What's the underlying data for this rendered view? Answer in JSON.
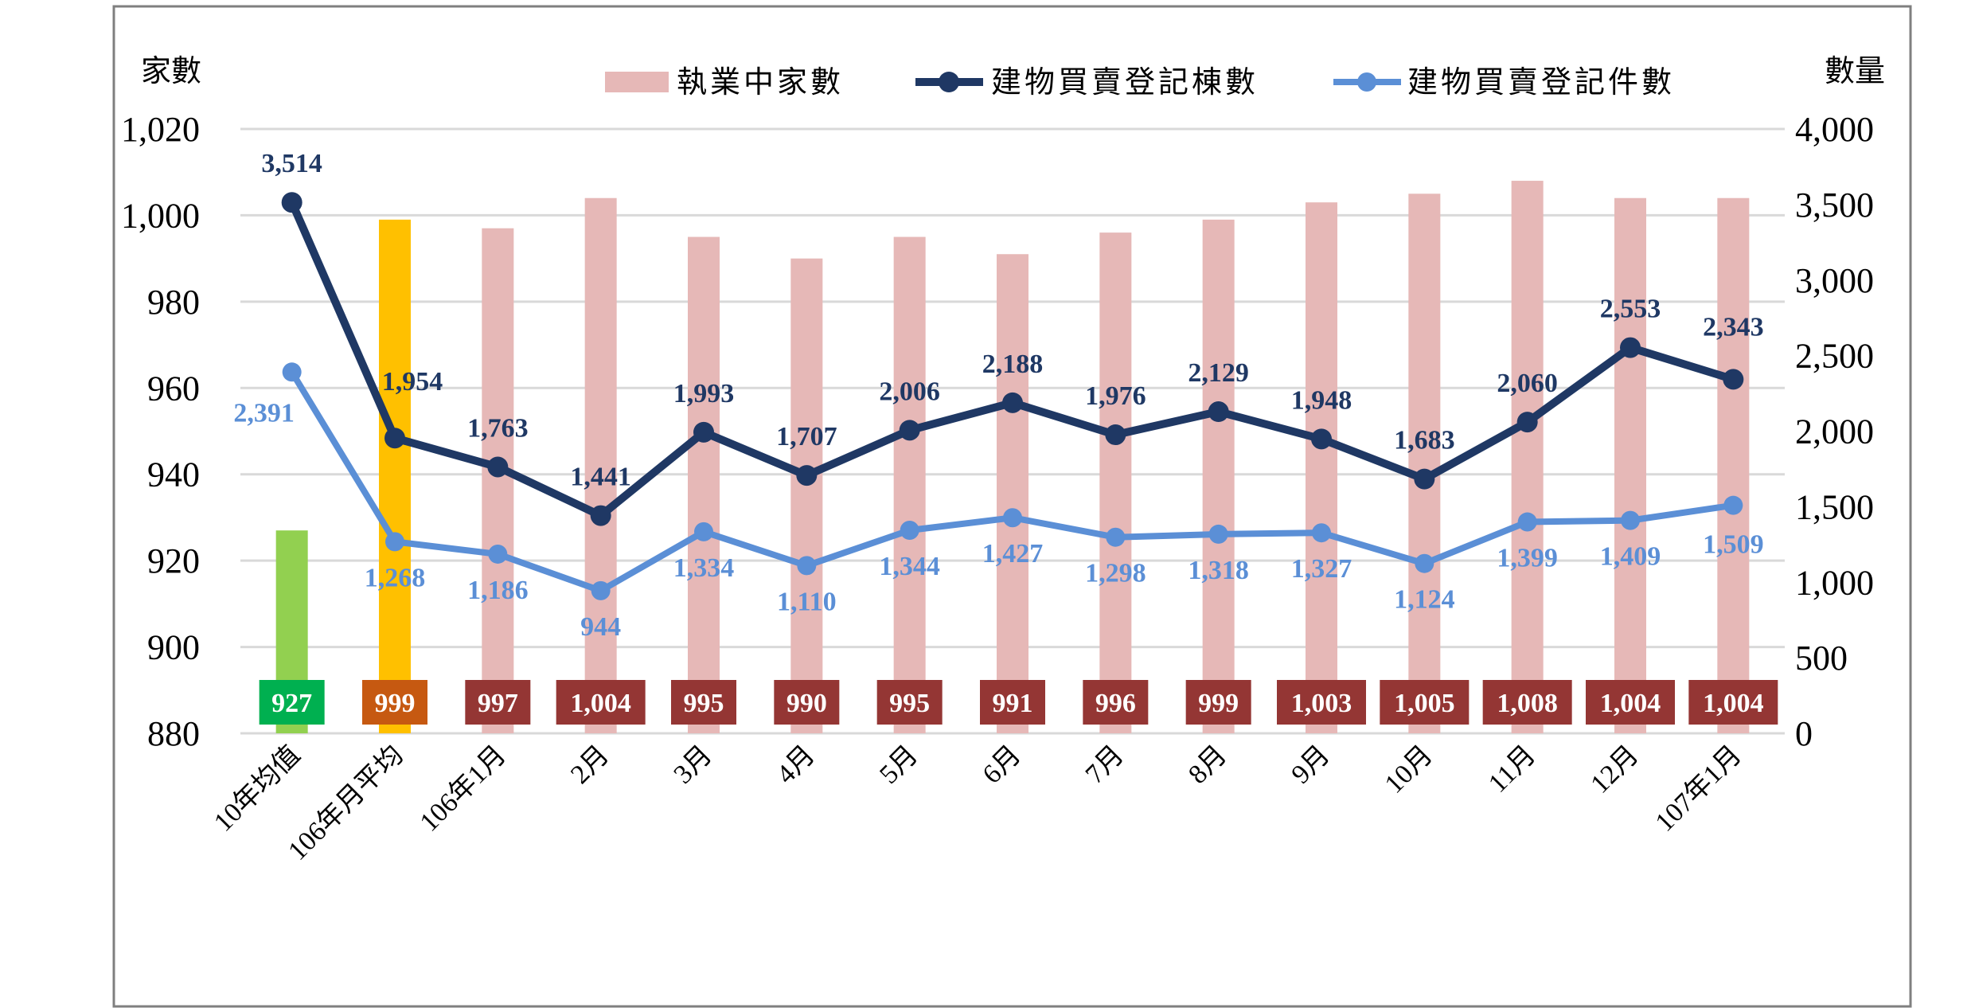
{
  "chart_data": {
    "type": "bar+line",
    "categories": [
      "10年均值",
      "106年月平均",
      "106年1月",
      "2月",
      "3月",
      "4月",
      "5月",
      "6月",
      "7月",
      "8月",
      "9月",
      "10月",
      "11月",
      "12月",
      "107年1月"
    ],
    "left_axis": {
      "label": "家數",
      "ylim": [
        880,
        1020
      ],
      "ticks": [
        "880",
        "900",
        "920",
        "940",
        "960",
        "980",
        "1,000",
        "1,020"
      ],
      "tick_values": [
        880,
        900,
        920,
        940,
        960,
        980,
        1000,
        1020
      ]
    },
    "right_axis": {
      "label": "數量",
      "ylim": [
        0,
        4000
      ],
      "ticks": [
        "0",
        "500",
        "1,000",
        "1,500",
        "2,000",
        "2,500",
        "3,000",
        "3,500",
        "4,000"
      ],
      "tick_values": [
        0,
        500,
        1000,
        1500,
        2000,
        2500,
        3000,
        3500,
        4000
      ]
    },
    "grid": true,
    "legend_placement": "top",
    "series": [
      {
        "name": "執業中家數",
        "kind": "bar",
        "axis": "left",
        "color": "#e6b8b7",
        "values": [
          927,
          999,
          997,
          1004,
          995,
          990,
          995,
          991,
          996,
          999,
          1003,
          1005,
          1008,
          1004,
          1004
        ],
        "labels": [
          "927",
          "999",
          "997",
          "1,004",
          "995",
          "990",
          "995",
          "991",
          "996",
          "999",
          "1,003",
          "1,005",
          "1,008",
          "1,004",
          "1,004"
        ],
        "bar_colors": [
          "#92d050",
          "#ffc000",
          "#e6b8b7",
          "#e6b8b7",
          "#e6b8b7",
          "#e6b8b7",
          "#e6b8b7",
          "#e6b8b7",
          "#e6b8b7",
          "#e6b8b7",
          "#e6b8b7",
          "#e6b8b7",
          "#e6b8b7",
          "#e6b8b7",
          "#e6b8b7"
        ],
        "label_box_colors": [
          "#00b050",
          "#c65911",
          "#943634",
          "#943634",
          "#943634",
          "#943634",
          "#943634",
          "#943634",
          "#943634",
          "#943634",
          "#943634",
          "#943634",
          "#943634",
          "#943634",
          "#943634"
        ]
      },
      {
        "name": "建物買賣登記棟數",
        "kind": "line",
        "axis": "right",
        "color": "#1f3864",
        "values": [
          3514,
          1954,
          1763,
          1441,
          1993,
          1707,
          2006,
          2188,
          1976,
          2129,
          1948,
          1683,
          2060,
          2553,
          2343
        ],
        "labels": [
          "3,514",
          "1,954",
          "1,763",
          "1,441",
          "1,993",
          "1,707",
          "2,006",
          "2,188",
          "1,976",
          "2,129",
          "1,948",
          "1,683",
          "2,060",
          "2,553",
          "2,343"
        ]
      },
      {
        "name": "建物買賣登記件數",
        "kind": "line",
        "axis": "right",
        "color": "#5b8fd6",
        "values": [
          2391,
          1268,
          1186,
          944,
          1334,
          1110,
          1344,
          1427,
          1298,
          1318,
          1327,
          1124,
          1399,
          1409,
          1509
        ],
        "labels": [
          "2,391",
          "1,268",
          "1,186",
          "944",
          "1,334",
          "1,110",
          "1,344",
          "1,427",
          "1,298",
          "1,318",
          "1,327",
          "1,124",
          "1,399",
          "1,409",
          "1,509"
        ]
      }
    ]
  }
}
